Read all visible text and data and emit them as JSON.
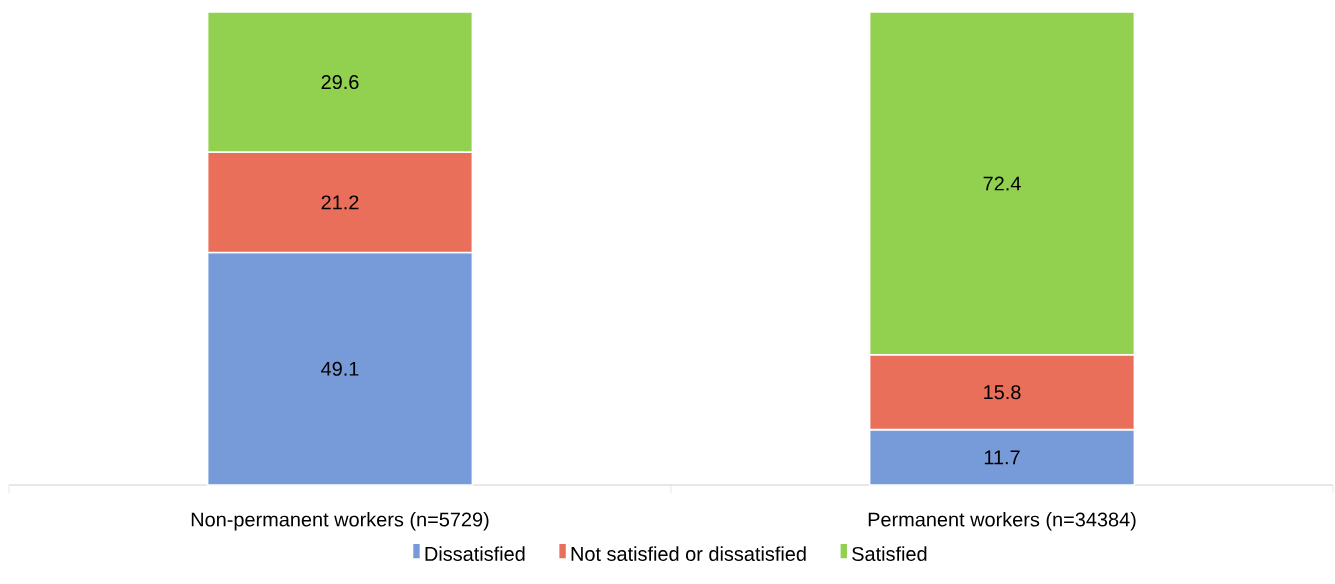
{
  "chart_data": {
    "type": "bar",
    "stacked": true,
    "data_labels": true,
    "legend": "bottom",
    "categories": [
      "Non-permanent workers (n=5729)",
      "Permanent workers (n=34384)"
    ],
    "series": [
      {
        "name": "Dissatisfied",
        "color": "#779ad8",
        "values": [
          49.1,
          11.7
        ]
      },
      {
        "name": "Not satisfied or dissatisfied",
        "color": "#ea6f5a",
        "values": [
          21.2,
          15.8
        ]
      },
      {
        "name": "Satisfied",
        "color": "#92d050",
        "values": [
          29.6,
          72.4
        ]
      }
    ]
  }
}
